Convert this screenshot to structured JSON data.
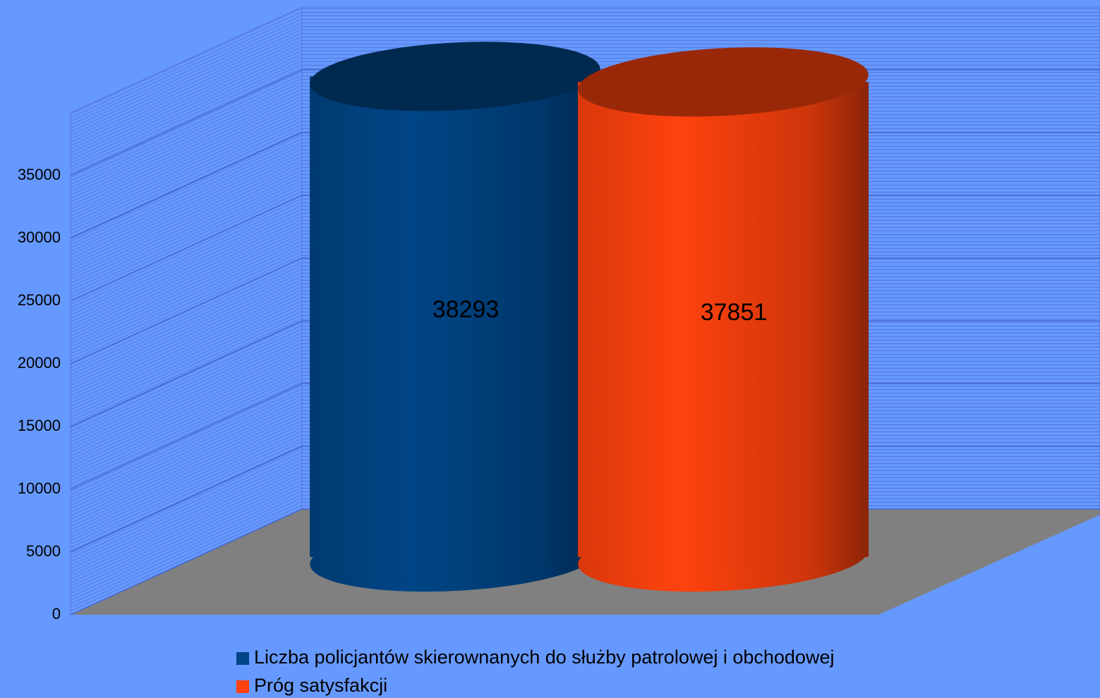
{
  "chart_data": {
    "type": "cylinder",
    "categories": [
      null
    ],
    "series": [
      {
        "name": "Liczba policjantów skierownanych do służby patrolowej i obchodowej",
        "color": "#004586",
        "values": [
          38293
        ]
      },
      {
        "name": "Próg satysfakcji",
        "color": "#ff420e",
        "values": [
          37851
        ]
      }
    ],
    "ylim": [
      0,
      40000
    ],
    "yticks": [
      0,
      5000,
      10000,
      15000,
      20000,
      25000,
      30000,
      35000
    ],
    "grid": true,
    "legend": "bottom"
  }
}
